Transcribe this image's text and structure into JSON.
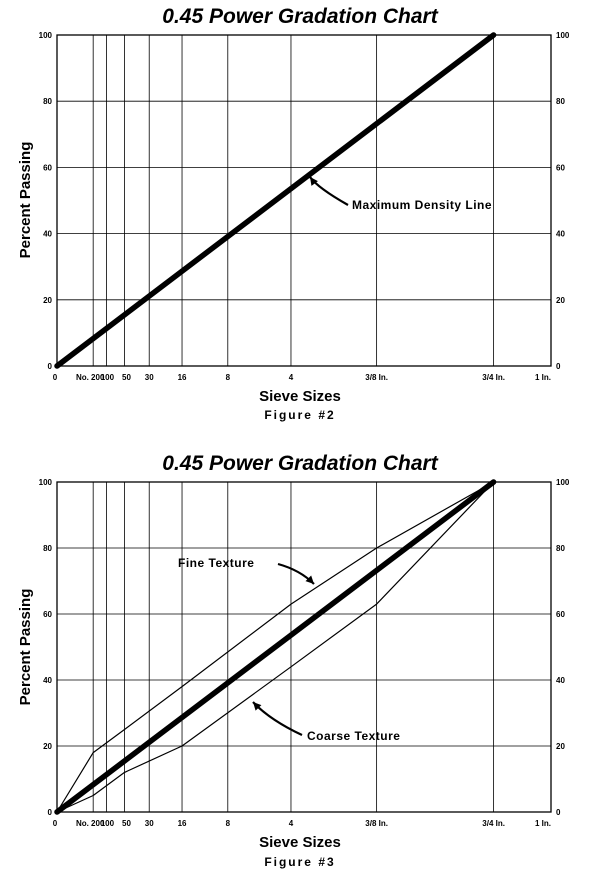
{
  "chart_data": [
    {
      "type": "line",
      "title": "0.45 Power Gradation Chart",
      "xlabel": "Sieve Sizes",
      "ylabel": "Percent Passing",
      "figure_label": "Figure #2",
      "x_scale": "power-0.45",
      "x_ticks": [
        "0",
        "No. 200",
        "100",
        "50",
        "30",
        "16",
        "8",
        "4",
        "3/8 In.",
        "3/4 In.",
        "1 In."
      ],
      "y_ticks": [
        0,
        20,
        40,
        60,
        80,
        100
      ],
      "ylim": [
        0,
        100
      ],
      "grid": true,
      "series": [
        {
          "key": "mdl",
          "x": [
            "0",
            "3/4 In."
          ],
          "y": [
            0,
            100
          ],
          "style": "thick"
        }
      ],
      "annotations": [
        {
          "text": "Maximum Density Line",
          "target_series": "mdl"
        }
      ]
    },
    {
      "type": "line",
      "title": "0.45 Power Gradation Chart",
      "xlabel": "Sieve Sizes",
      "ylabel": "Percent Passing",
      "figure_label": "Figure #3",
      "x_scale": "power-0.45",
      "x_ticks": [
        "0",
        "No. 200",
        "100",
        "50",
        "30",
        "16",
        "8",
        "4",
        "3/8 In.",
        "3/4 In.",
        "1 In."
      ],
      "y_ticks": [
        0,
        20,
        40,
        60,
        80,
        100
      ],
      "ylim": [
        0,
        100
      ],
      "grid": true,
      "series": [
        {
          "key": "mdl",
          "x": [
            "0",
            "3/4 In."
          ],
          "y": [
            0,
            100
          ],
          "style": "thick"
        },
        {
          "key": "fine",
          "x": [
            "0",
            "No. 200",
            "50",
            "16",
            "4",
            "3/8 In.",
            "3/4 In."
          ],
          "y": [
            0,
            18,
            25,
            38,
            63,
            80,
            100
          ],
          "style": "thin"
        },
        {
          "key": "coarse",
          "x": [
            "0",
            "No. 200",
            "50",
            "16",
            "4",
            "3/8 In.",
            "3/4 In."
          ],
          "y": [
            0,
            5,
            12,
            20,
            44,
            63,
            100
          ],
          "style": "thin"
        }
      ],
      "annotations": [
        {
          "text": "Fine Texture",
          "target_series": "fine"
        },
        {
          "text": "Coarse Texture",
          "target_series": "coarse"
        }
      ]
    }
  ]
}
